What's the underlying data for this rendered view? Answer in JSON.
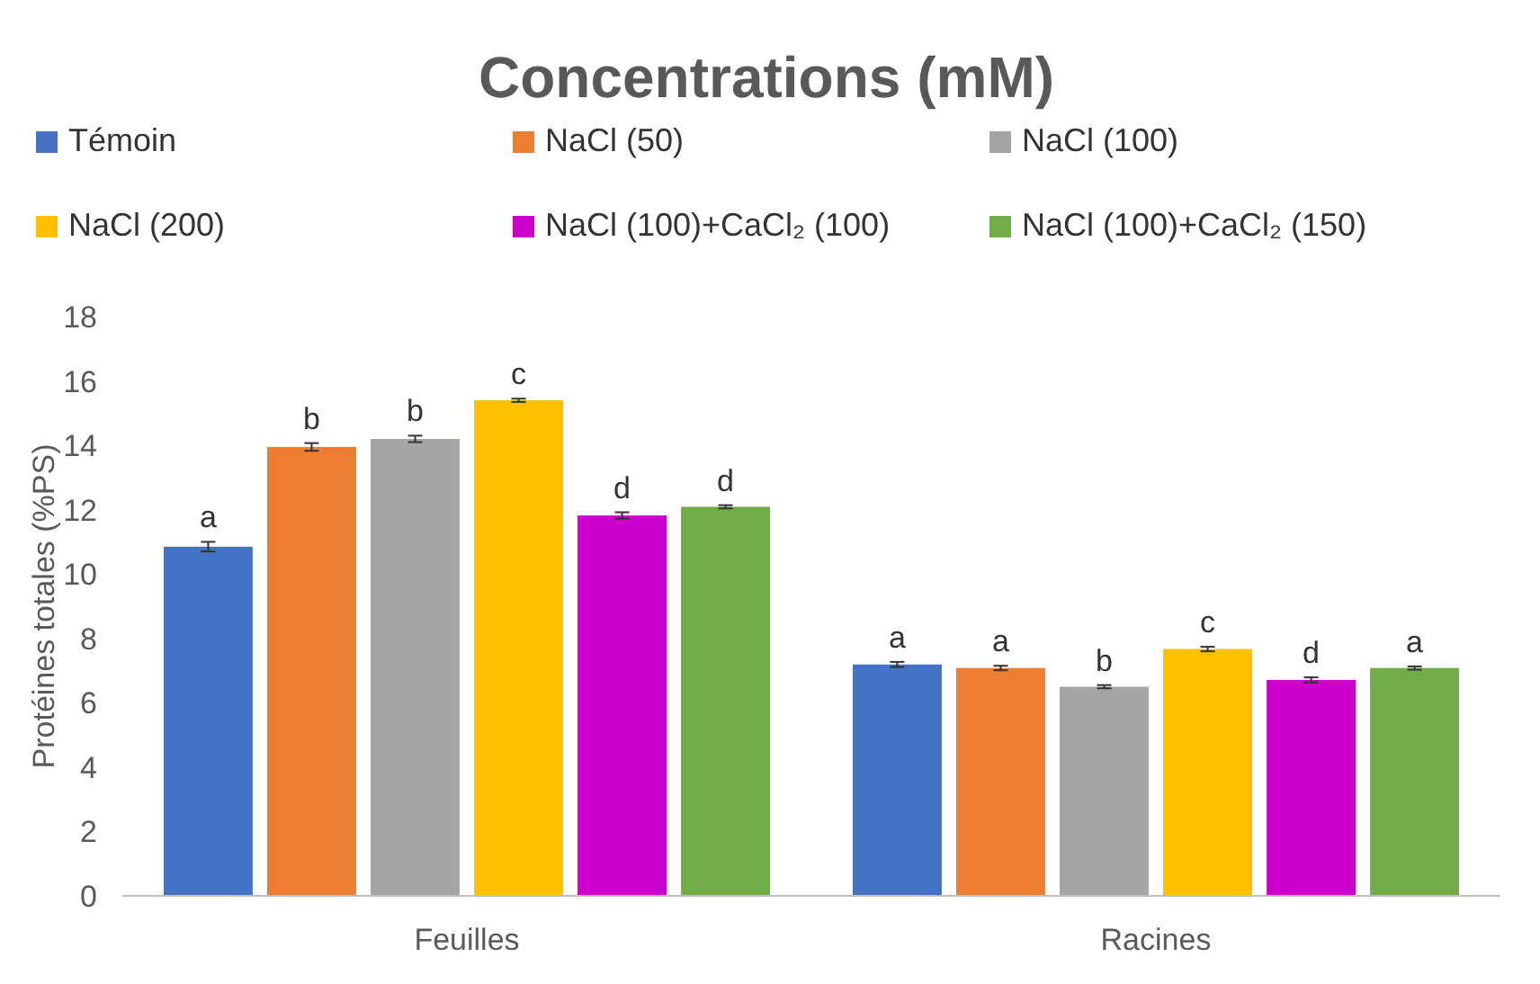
{
  "chart_data": {
    "type": "bar",
    "title": "Concentrations (mM)",
    "ylabel": "Protéines totales (%PS)",
    "categories": [
      "Feuilles",
      "Racines"
    ],
    "ylim": [
      0,
      18
    ],
    "yticks": [
      0,
      2,
      4,
      6,
      8,
      10,
      12,
      14,
      16,
      18
    ],
    "grid": false,
    "legend": "top",
    "series": [
      {
        "name": "Témoin",
        "color": "#4472c4",
        "values": [
          10.85,
          7.19
        ],
        "errors": [
          0.15,
          0.08
        ],
        "value_labels": [
          "a",
          "a"
        ]
      },
      {
        "name": "NaCl (50)",
        "color": "#ed7d31",
        "values": [
          13.95,
          7.08
        ],
        "errors": [
          0.12,
          0.07
        ],
        "value_labels": [
          "b",
          "a"
        ]
      },
      {
        "name": "NaCl (100)",
        "color": "#a5a5a5",
        "values": [
          14.2,
          6.5
        ],
        "errors": [
          0.1,
          0.05
        ],
        "value_labels": [
          "b",
          "b"
        ]
      },
      {
        "name": "NaCl (200)",
        "color": "#ffc000",
        "values": [
          15.4,
          7.67
        ],
        "errors": [
          0.05,
          0.07
        ],
        "value_labels": [
          "c",
          "c"
        ]
      },
      {
        "name": "NaCl (100)+CaCl₂ (100)",
        "color": "#cc00cc",
        "values": [
          11.82,
          6.71
        ],
        "errors": [
          0.1,
          0.08
        ],
        "value_labels": [
          "d",
          "d"
        ]
      },
      {
        "name": "NaCl (100)+CaCl₂ (150)",
        "color": "#70ad47",
        "values": [
          12.09,
          7.08
        ],
        "errors": [
          0.05,
          0.05
        ],
        "value_labels": [
          "d",
          "a"
        ]
      }
    ]
  }
}
